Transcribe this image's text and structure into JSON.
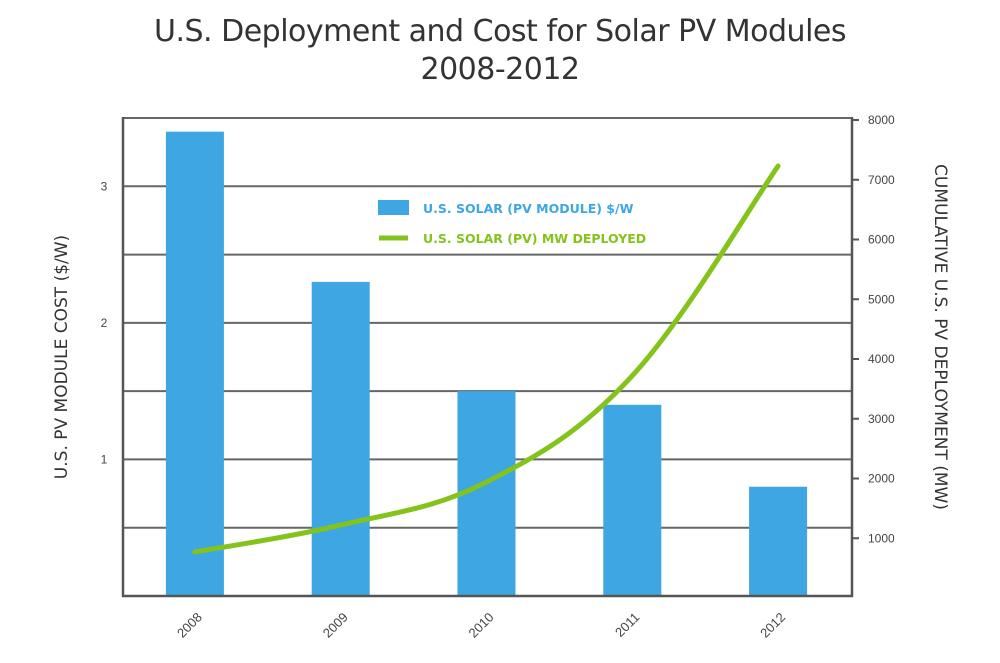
{
  "chart_data": {
    "type": "bar",
    "title": "U.S. Deployment and Cost for Solar PV Modules",
    "subtitle": "2008-2012",
    "categories": [
      "2008",
      "2009",
      "2010",
      "2011",
      "2012"
    ],
    "series": [
      {
        "name": "U.S. SOLAR (PV MODULE) $/W",
        "type": "bar",
        "axis": "left",
        "color": "#3DA6E3",
        "values": [
          3.4,
          2.3,
          1.5,
          1.4,
          0.8
        ]
      },
      {
        "name": "U.S. SOLAR (PV) MW DEPLOYED",
        "type": "line",
        "axis": "right",
        "color": "#84C31B",
        "values": [
          770,
          1220,
          1940,
          3720,
          7230
        ]
      }
    ],
    "xlabel": "",
    "ylabel": "U.S. PV MODULE COST ($/W)",
    "ylabel_right": "CUMULATIVE U.S. PV DEPLOYMENT (MW)",
    "ylim": [
      0,
      3.5
    ],
    "ylim_right": [
      0,
      8000
    ],
    "yticks_left": [
      "1",
      "2",
      "3"
    ],
    "yticks_left_values": [
      1,
      2,
      3
    ],
    "yticks_right": [
      "1000",
      "2000",
      "3000",
      "4000",
      "5000",
      "6000",
      "7000",
      "8000"
    ],
    "yticks_right_values": [
      1000,
      2000,
      3000,
      4000,
      5000,
      6000,
      7000,
      8000
    ],
    "gridlines_left_values": [
      0.5,
      1,
      1.5,
      2,
      2.5,
      3
    ],
    "grid": true,
    "legend_position": "top-center-inside",
    "axis_color": "#555555"
  }
}
